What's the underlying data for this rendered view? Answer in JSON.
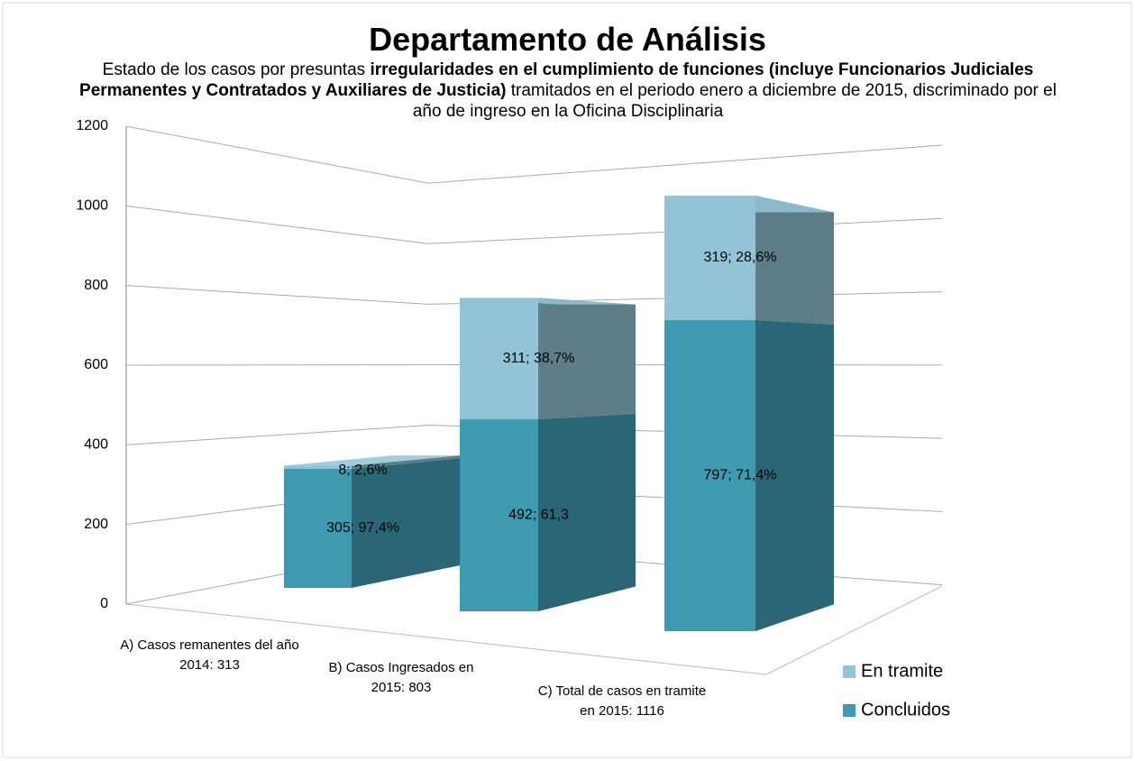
{
  "chart_data": {
    "type": "bar3d_stacked",
    "title": "Departamento de Análisis",
    "subtitle_parts": [
      {
        "text": "Estado de los casos  por presuntas ",
        "bold": false
      },
      {
        "text": "irregularidades en el cumplimiento de funciones (incluye Funcionarios Judiciales Permanentes y Contratados y Auxiliares de Justicia)",
        "bold": true
      },
      {
        "text": " tramitados en el periodo enero a  diciembre de 2015, discriminado por  el año de ingreso en la Oficina Disciplinaria",
        "bold": false
      }
    ],
    "categories": [
      "A) Casos remanentes del año 2014:   313",
      "B) Casos Ingresados en 2015:  803",
      "C) Total de casos en tramite en 2015:   1116"
    ],
    "series": [
      {
        "name": "Concluidos",
        "color": "#3d9ab0",
        "side_color": "#2a6675",
        "values": [
          305,
          492,
          797
        ],
        "value_labels": [
          "305; 97,4%",
          "492; 61,3",
          "797; 71,4%"
        ]
      },
      {
        "name": "En tramite",
        "color": "#93c4d6",
        "side_color": "#5d7d87",
        "values": [
          8,
          311,
          319
        ],
        "value_labels": [
          "8; 2,6%",
          "311; 38,7%",
          "319; 28,6%"
        ]
      }
    ],
    "ylim": [
      0,
      1200
    ],
    "yticks": [
      0,
      200,
      400,
      600,
      800,
      1000,
      1200
    ],
    "grid": true,
    "legend": "right"
  }
}
